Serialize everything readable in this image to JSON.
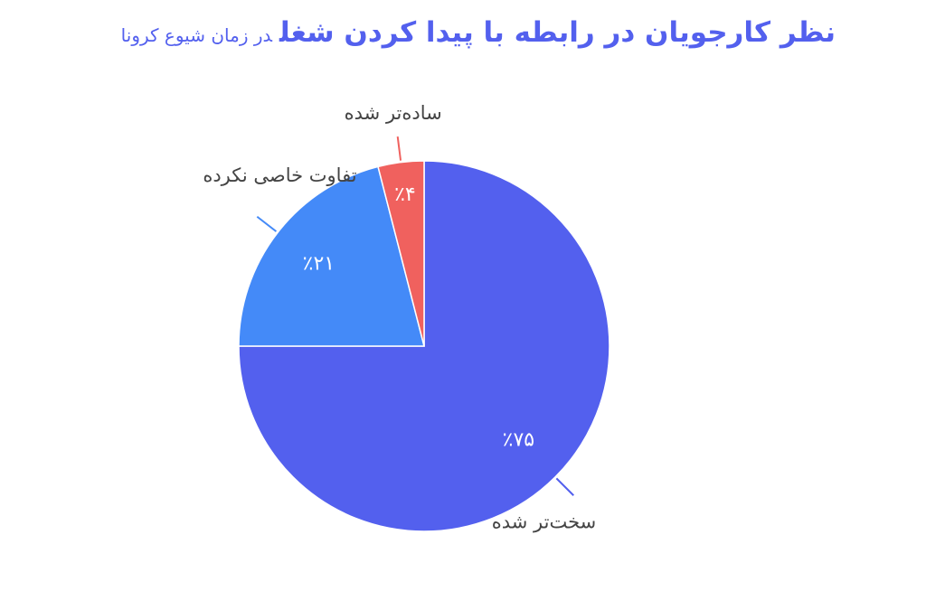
{
  "chart_data": {
    "type": "pie",
    "title": "نظر کارجویان در رابطه با پیدا کردن شغل",
    "subtitle": "در زمان شیوع کرونا",
    "categories": [
      "سخت‌تر شده",
      "تفاوت خاصی نکرده",
      "ساده‌تر شده"
    ],
    "values": [
      75,
      21,
      4
    ],
    "value_labels": [
      "٪۷۵",
      "٪۲۱",
      "٪۴"
    ],
    "colors": [
      "#5360ee",
      "#448af8",
      "#f0615e"
    ]
  }
}
